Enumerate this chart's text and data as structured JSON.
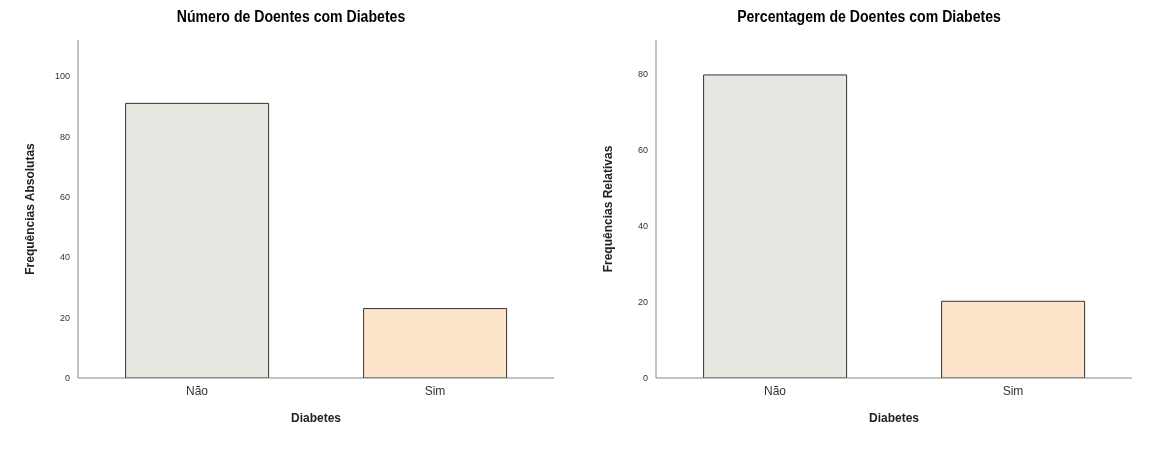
{
  "chart_data": [
    {
      "type": "bar",
      "title": "Número de Doentes com Diabetes",
      "xlabel": "Diabetes",
      "ylabel": "Frequências Absolutas",
      "categories": [
        "Não",
        "Sim"
      ],
      "values": [
        91,
        23
      ],
      "colors": [
        "#e8e7e2",
        "#fde5cc"
      ],
      "ylim": [
        0,
        112
      ],
      "yticks": [
        0,
        20,
        40,
        60,
        80,
        100
      ],
      "grid": false
    },
    {
      "type": "bar",
      "title": "Percentagem de Doentes com Diabetes",
      "xlabel": "Diabetes",
      "ylabel": "Frequências Relativas",
      "categories": [
        "Não",
        "Sim"
      ],
      "values": [
        79.8,
        20.2
      ],
      "colors": [
        "#e8e7e2",
        "#fde5cc"
      ],
      "ylim": [
        0,
        89
      ],
      "yticks": [
        0,
        20,
        40,
        60,
        80
      ],
      "grid": false
    }
  ]
}
